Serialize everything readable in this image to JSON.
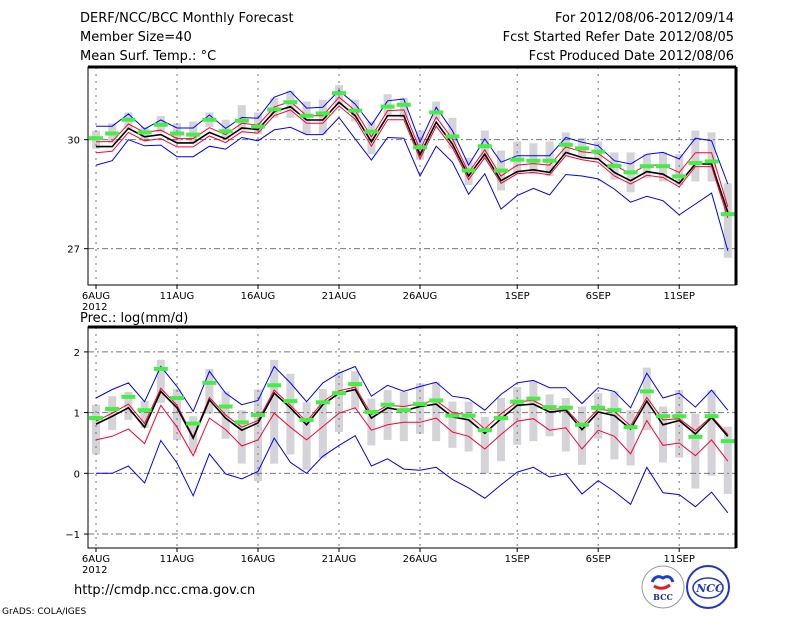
{
  "header": {
    "title": "DERF/NCC/BCC Monthly Forecast",
    "member_size": "Member Size=40",
    "variable": "Mean Surf. Temp.: °C",
    "period": "For 2012/08/06-2012/09/14",
    "started": "Fcst Started Refer Date 2012/08/05",
    "produced": "Fcst Produced Date 2012/08/06"
  },
  "footer": {
    "url": "http://cmdp.ncc.cma.gov.cn",
    "credit": "GrADS: COLA/IGES",
    "logos": [
      "BCC",
      "NCC"
    ]
  },
  "colors": {
    "spread_outer": "#0000ff",
    "spread_inner": "#ff0033",
    "mean": "#000000",
    "observed": "#44ee44",
    "range_bar": "#d3d3d8",
    "grid": "#777777"
  },
  "chart_data": [
    {
      "type": "line",
      "title": "Mean Surf. Temp.: °C",
      "xlabel": "",
      "ylabel": "°C",
      "year_label": "2012",
      "x_tick_labels": [
        "6AUG",
        "11AUG",
        "16AUG",
        "21AUG",
        "26AUG",
        "1SEP",
        "6SEP",
        "11SEP"
      ],
      "x_tick_days": [
        0,
        5,
        10,
        15,
        20,
        26,
        31,
        36
      ],
      "y_ticks": [
        30,
        27
      ],
      "y_tick_labels": [
        "30",
        "27"
      ],
      "ylim": [
        26,
        32
      ],
      "days": 40,
      "grid": true,
      "series": [
        {
          "name": "max",
          "color_key": "spread_outer",
          "values": [
            30.37,
            30.37,
            30.71,
            30.29,
            30.54,
            30.32,
            30.32,
            30.68,
            30.31,
            30.61,
            30.59,
            31.17,
            31.33,
            30.87,
            30.89,
            31.35,
            30.98,
            30.4,
            31.07,
            31.12,
            29.93,
            30.89,
            30.25,
            29.3,
            30.02,
            29.38,
            29.56,
            29.56,
            29.56,
            30.06,
            29.93,
            29.83,
            29.42,
            29.33,
            29.6,
            29.65,
            29.47,
            30.04,
            29.97,
            28.78
          ]
        },
        {
          "name": "upper",
          "color_key": "spread_inner",
          "values": [
            29.94,
            29.95,
            30.43,
            30.2,
            30.26,
            30.03,
            30.03,
            30.33,
            30.14,
            30.45,
            30.4,
            30.9,
            31.05,
            30.66,
            30.66,
            31.17,
            30.8,
            30.08,
            30.8,
            30.82,
            29.72,
            30.62,
            30.02,
            29.1,
            29.72,
            29.0,
            29.3,
            29.34,
            29.3,
            29.8,
            29.67,
            29.62,
            29.3,
            29.06,
            29.3,
            29.3,
            29.1,
            29.64,
            29.64,
            28.15
          ]
        },
        {
          "name": "mean",
          "color_key": "mean",
          "values": [
            29.81,
            29.81,
            30.31,
            30.08,
            30.14,
            29.91,
            29.91,
            30.2,
            30.02,
            30.32,
            30.28,
            30.77,
            30.91,
            30.54,
            30.54,
            31.03,
            30.66,
            29.94,
            30.66,
            30.66,
            29.58,
            30.48,
            29.88,
            29.0,
            29.6,
            28.87,
            29.12,
            29.17,
            29.1,
            29.65,
            29.51,
            29.47,
            29.1,
            28.87,
            29.12,
            29.05,
            28.8,
            29.33,
            29.33,
            28.0
          ]
        },
        {
          "name": "lower",
          "color_key": "spread_inner",
          "values": [
            29.64,
            29.68,
            30.2,
            29.97,
            30.03,
            29.8,
            29.8,
            30.1,
            29.92,
            30.22,
            30.18,
            30.66,
            30.82,
            30.45,
            30.45,
            30.93,
            30.56,
            29.82,
            30.55,
            30.55,
            29.47,
            30.37,
            29.78,
            28.9,
            29.5,
            28.8,
            29.06,
            29.1,
            29.03,
            29.56,
            29.45,
            29.38,
            29.0,
            28.78,
            29.02,
            28.96,
            28.7,
            29.26,
            29.26,
            27.85
          ]
        },
        {
          "name": "min",
          "color_key": "spread_outer",
          "values": [
            29.3,
            29.42,
            30.0,
            29.83,
            29.85,
            29.53,
            29.53,
            29.82,
            29.74,
            30.06,
            29.97,
            30.27,
            30.34,
            30.14,
            30.14,
            30.61,
            30.02,
            29.44,
            30.06,
            30.04,
            29.0,
            29.82,
            29.38,
            28.5,
            29.06,
            28.09,
            28.46,
            28.66,
            28.48,
            29.04,
            29.0,
            28.92,
            28.64,
            28.28,
            28.44,
            28.32,
            27.93,
            28.23,
            28.53,
            26.94
          ]
        }
      ],
      "observed": [
        30.04,
        30.17,
        30.55,
        30.2,
        30.41,
        30.17,
        30.14,
        30.55,
        30.23,
        30.52,
        30.36,
        30.83,
        31.03,
        30.66,
        30.72,
        31.28,
        30.8,
        30.22,
        30.91,
        30.96,
        29.79,
        30.75,
        30.09,
        29.15,
        29.82,
        29.15,
        29.45,
        29.42,
        29.42,
        29.86,
        29.76,
        29.67,
        29.28,
        29.1,
        29.27,
        29.27,
        28.99,
        29.36,
        29.4,
        27.95
      ],
      "range_bars": {
        "low": [
          29.75,
          29.9,
          30.3,
          29.95,
          30.2,
          29.95,
          29.9,
          30.35,
          30.0,
          30.25,
          30.15,
          30.6,
          30.6,
          30.15,
          30.15,
          30.95,
          30.5,
          29.6,
          30.65,
          30.6,
          29.45,
          30.55,
          29.75,
          28.75,
          29.45,
          28.6,
          29.05,
          29.05,
          29.0,
          29.55,
          29.5,
          29.45,
          28.9,
          28.55,
          28.95,
          28.85,
          28.75,
          28.85,
          28.85,
          26.75
        ],
        "high": [
          30.25,
          30.45,
          30.75,
          30.35,
          30.65,
          30.45,
          30.5,
          30.75,
          30.55,
          30.95,
          30.75,
          31.15,
          31.35,
          31.05,
          31.1,
          31.5,
          31.1,
          30.5,
          31.25,
          31.15,
          30.25,
          31.05,
          30.6,
          29.5,
          30.25,
          29.7,
          29.95,
          29.9,
          29.95,
          30.2,
          30.05,
          29.95,
          29.65,
          29.65,
          29.6,
          29.65,
          29.6,
          30.25,
          30.2,
          28.8
        ]
      }
    },
    {
      "type": "line",
      "title": "Prec.: log(mm/d)",
      "xlabel": "",
      "ylabel": "log(mm/d)",
      "year_label": "2012",
      "x_tick_labels": [
        "6AUG",
        "11AUG",
        "16AUG",
        "21AUG",
        "26AUG",
        "1SEP",
        "6SEP",
        "11SEP"
      ],
      "x_tick_days": [
        0,
        5,
        10,
        15,
        20,
        26,
        31,
        36
      ],
      "y_ticks": [
        2,
        1,
        0,
        -1
      ],
      "y_tick_labels": [
        "2",
        "1",
        "0",
        "−1"
      ],
      "ylim": [
        -1.23,
        2.41
      ],
      "days": 40,
      "grid": true,
      "series": [
        {
          "name": "max",
          "color_key": "spread_outer",
          "values": [
            1.24,
            1.38,
            1.49,
            1.18,
            1.76,
            1.43,
            1.02,
            1.68,
            1.32,
            1.13,
            1.2,
            1.76,
            1.49,
            1.18,
            1.49,
            1.65,
            1.76,
            1.27,
            1.45,
            1.35,
            1.43,
            1.5,
            1.27,
            1.23,
            1.04,
            1.3,
            1.49,
            1.53,
            1.41,
            1.41,
            1.15,
            1.41,
            1.35,
            1.08,
            1.65,
            1.24,
            1.32,
            1.09,
            1.37,
            1.04
          ]
        },
        {
          "name": "upper",
          "color_key": "spread_inner",
          "values": [
            0.86,
            0.99,
            1.14,
            0.82,
            1.4,
            1.12,
            0.6,
            1.25,
            0.96,
            0.76,
            0.87,
            1.37,
            1.12,
            0.85,
            1.18,
            1.36,
            1.42,
            0.97,
            1.12,
            1.1,
            1.15,
            1.2,
            1.0,
            0.96,
            0.73,
            0.98,
            1.18,
            1.2,
            1.06,
            1.06,
            0.78,
            1.06,
            1.02,
            0.78,
            1.25,
            0.88,
            0.9,
            0.7,
            0.94,
            0.64
          ]
        },
        {
          "name": "mean",
          "color_key": "mean",
          "values": [
            0.81,
            0.94,
            1.08,
            0.76,
            1.35,
            1.08,
            0.58,
            1.21,
            0.91,
            0.71,
            0.83,
            1.32,
            1.08,
            0.8,
            1.13,
            1.32,
            1.38,
            0.91,
            1.08,
            1.03,
            1.1,
            1.14,
            0.93,
            0.88,
            0.66,
            0.9,
            1.12,
            1.14,
            1.01,
            1.04,
            0.72,
            1.01,
            0.95,
            0.73,
            1.19,
            0.8,
            0.87,
            0.65,
            0.92,
            0.61
          ]
        },
        {
          "name": "lower",
          "color_key": "spread_inner",
          "values": [
            0.55,
            0.61,
            0.73,
            0.49,
            1.12,
            0.76,
            0.29,
            0.91,
            0.72,
            0.45,
            0.55,
            0.99,
            0.76,
            0.55,
            0.77,
            0.99,
            1.08,
            0.71,
            0.8,
            0.84,
            0.84,
            0.91,
            0.68,
            0.61,
            0.4,
            0.64,
            0.86,
            0.9,
            0.71,
            0.75,
            0.4,
            0.71,
            0.61,
            0.32,
            0.87,
            0.46,
            0.5,
            0.29,
            0.55,
            0.2
          ]
        },
        {
          "name": "min",
          "color_key": "spread_outer",
          "values": [
            0.0,
            0.0,
            0.12,
            -0.16,
            0.54,
            0.17,
            -0.37,
            0.32,
            -0.01,
            -0.09,
            0.03,
            0.58,
            0.18,
            0.0,
            0.28,
            0.46,
            0.62,
            0.12,
            0.24,
            0.07,
            0.05,
            0.1,
            -0.1,
            -0.24,
            -0.41,
            -0.19,
            0.02,
            0.1,
            -0.06,
            -0.01,
            -0.34,
            -0.12,
            -0.3,
            -0.51,
            0.1,
            -0.32,
            -0.35,
            -0.55,
            -0.31,
            -0.65
          ]
        }
      ],
      "observed": [
        0.91,
        1.06,
        1.26,
        1.04,
        1.72,
        1.24,
        0.82,
        1.49,
        1.1,
        0.84,
        0.96,
        1.45,
        1.19,
        0.88,
        1.17,
        1.32,
        1.47,
        1.01,
        1.13,
        1.04,
        1.14,
        1.2,
        0.95,
        0.95,
        0.71,
        0.91,
        1.18,
        1.23,
        1.09,
        1.08,
        0.8,
        1.08,
        1.04,
        0.76,
        1.35,
        0.94,
        0.94,
        0.6,
        0.94,
        0.53
      ],
      "range_bars": {
        "low": [
          0.31,
          0.71,
          0.88,
          0.75,
          1.16,
          0.55,
          0.34,
          0.98,
          0.57,
          0.16,
          -0.13,
          0.16,
          0.31,
          0.06,
          0.25,
          0.68,
          1.05,
          0.46,
          0.55,
          0.53,
          0.65,
          0.53,
          0.42,
          0.36,
          0.0,
          0.2,
          0.47,
          0.53,
          0.61,
          0.36,
          0.14,
          0.57,
          0.23,
          0.13,
          0.71,
          0.18,
          0.26,
          -0.25,
          -0.04,
          -0.34
        ],
        "high": [
          1.13,
          1.27,
          1.34,
          1.19,
          1.87,
          1.39,
          0.94,
          1.72,
          1.35,
          1.04,
          1.38,
          1.87,
          1.64,
          1.17,
          1.39,
          1.67,
          1.68,
          1.23,
          1.37,
          1.34,
          1.48,
          1.5,
          1.18,
          1.18,
          0.93,
          1.24,
          1.42,
          1.52,
          1.3,
          1.24,
          1.1,
          1.32,
          1.35,
          1.04,
          1.74,
          1.1,
          1.37,
          0.98,
          1.37,
          0.77
        ]
      }
    }
  ]
}
